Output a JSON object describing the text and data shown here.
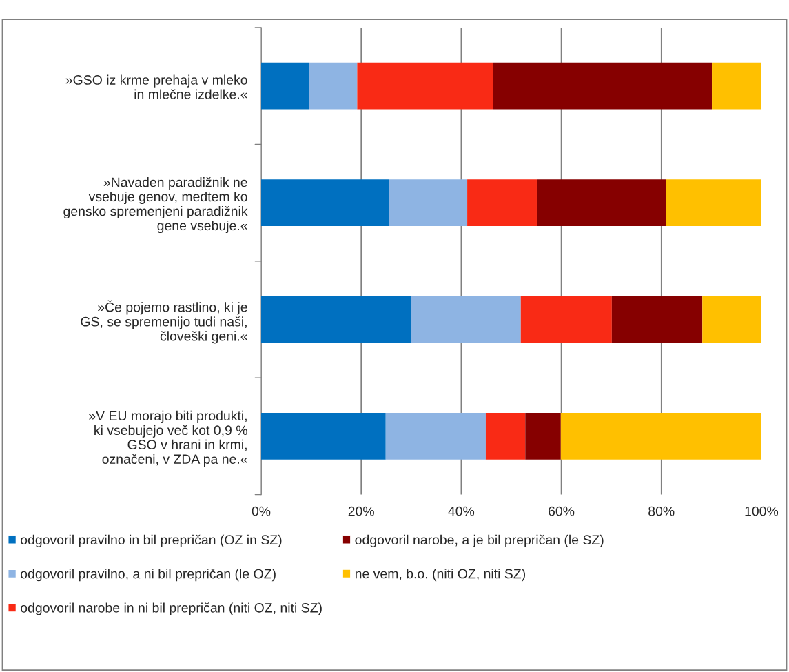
{
  "chart_data": {
    "type": "bar",
    "orientation": "horizontal",
    "stacked": true,
    "categories": [
      "»GSO iz krme prehaja v mleko in mlečne izdelke.«",
      "»Navaden paradižnik ne vsebuje genov, medtem ko gensko spremenjeni paradižnik gene vsebuje.«",
      "»Če pojemo rastlino, ki je GS, se spremenijo tudi naši, človeški geni.«",
      "»V EU morajo biti produkti, ki vsebujejo več kot 0,9 % GSO v hrani in krmi, označeni, v ZDA pa ne.«"
    ],
    "series": [
      {
        "name": "odgovoril pravilno in bil prepričan (OZ in SZ)",
        "color": "#0070c0",
        "values": [
          9.6,
          25.5,
          29.9,
          24.9
        ]
      },
      {
        "name": "odgovoril pravilno, a ni bil prepričan (le OZ)",
        "color": "#8eb4e3",
        "values": [
          9.6,
          15.7,
          22.0,
          20.0
        ]
      },
      {
        "name": "odgovoril narobe in ni bil prepričan (niti OZ, niti SZ)",
        "color": "#f92a15",
        "values": [
          27.2,
          13.9,
          18.2,
          7.9
        ]
      },
      {
        "name": "odgovoril narobe, a je bil prepričan (le SZ)",
        "color": "#860000",
        "values": [
          43.7,
          25.8,
          18.1,
          7.1
        ]
      },
      {
        "name": "ne vem, b.o. (niti OZ, niti SZ)",
        "color": "#ffc000",
        "values": [
          9.9,
          19.1,
          11.8,
          40.1
        ]
      }
    ],
    "xlim": [
      0,
      100
    ],
    "xticks": [
      {
        "value": 0,
        "label": "0%"
      },
      {
        "value": 20,
        "label": "20%"
      },
      {
        "value": 40,
        "label": "40%"
      },
      {
        "value": 60,
        "label": "60%"
      },
      {
        "value": 80,
        "label": "80%"
      },
      {
        "value": 100,
        "label": "100%"
      }
    ],
    "grid": "x",
    "legend": "bottom"
  }
}
